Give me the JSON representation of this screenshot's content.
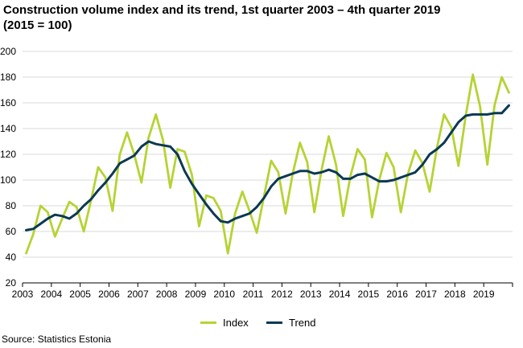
{
  "title_line1": "Construction volume index and its trend, 1st quarter 2003 – 4th quarter 2019",
  "title_line2": "(2015 = 100)",
  "source": "Source: Statistics Estonia",
  "chart_data": {
    "type": "line",
    "title": "Construction volume index and its trend, 1st quarter 2003 – 4th quarter 2019",
    "subtitle": "(2015 = 100)",
    "xlabel": "",
    "ylabel": "",
    "ylim": [
      20,
      200
    ],
    "yticks": [
      20,
      40,
      60,
      80,
      100,
      120,
      140,
      160,
      180,
      200
    ],
    "year_labels": [
      "2003",
      "2004",
      "2005",
      "2006",
      "2007",
      "2008",
      "2009",
      "2010",
      "2011",
      "2012",
      "2013",
      "2014",
      "2015",
      "2016",
      "2017",
      "2018",
      "2019"
    ],
    "grid": "horizontal",
    "legend": "bottom-center",
    "x": [
      "2003 Q1",
      "2003 Q2",
      "2003 Q3",
      "2003 Q4",
      "2004 Q1",
      "2004 Q2",
      "2004 Q3",
      "2004 Q4",
      "2005 Q1",
      "2005 Q2",
      "2005 Q3",
      "2005 Q4",
      "2006 Q1",
      "2006 Q2",
      "2006 Q3",
      "2006 Q4",
      "2007 Q1",
      "2007 Q2",
      "2007 Q3",
      "2007 Q4",
      "2008 Q1",
      "2008 Q2",
      "2008 Q3",
      "2008 Q4",
      "2009 Q1",
      "2009 Q2",
      "2009 Q3",
      "2009 Q4",
      "2010 Q1",
      "2010 Q2",
      "2010 Q3",
      "2010 Q4",
      "2011 Q1",
      "2011 Q2",
      "2011 Q3",
      "2011 Q4",
      "2012 Q1",
      "2012 Q2",
      "2012 Q3",
      "2012 Q4",
      "2013 Q1",
      "2013 Q2",
      "2013 Q3",
      "2013 Q4",
      "2014 Q1",
      "2014 Q2",
      "2014 Q3",
      "2014 Q4",
      "2015 Q1",
      "2015 Q2",
      "2015 Q3",
      "2015 Q4",
      "2016 Q1",
      "2016 Q2",
      "2016 Q3",
      "2016 Q4",
      "2017 Q1",
      "2017 Q2",
      "2017 Q3",
      "2017 Q4",
      "2018 Q1",
      "2018 Q2",
      "2018 Q3",
      "2018 Q4",
      "2019 Q1",
      "2019 Q2",
      "2019 Q3",
      "2019 Q4"
    ],
    "series": [
      {
        "name": "Index",
        "color": "#b5d334",
        "values": [
          43,
          58,
          80,
          75,
          56,
          70,
          83,
          79,
          60,
          84,
          110,
          102,
          76,
          120,
          137,
          120,
          98,
          133,
          151,
          131,
          94,
          124,
          122,
          104,
          64,
          88,
          86,
          76,
          43,
          74,
          91,
          76,
          59,
          87,
          115,
          106,
          74,
          105,
          129,
          114,
          75,
          108,
          134,
          112,
          72,
          103,
          124,
          116,
          71,
          100,
          121,
          110,
          75,
          105,
          123,
          113,
          91,
          125,
          151,
          141,
          111,
          150,
          182,
          157,
          112,
          158,
          180,
          168
        ]
      },
      {
        "name": "Trend",
        "color": "#0b3954",
        "values": [
          61,
          62,
          66,
          70,
          73,
          72,
          70,
          74,
          80,
          85,
          92,
          98,
          105,
          113,
          116,
          119,
          126,
          130,
          128,
          127,
          126,
          120,
          107,
          97,
          89,
          81,
          74,
          68,
          67,
          70,
          72,
          74,
          79,
          86,
          95,
          101,
          103,
          105,
          107,
          107,
          105,
          106,
          108,
          106,
          101,
          101,
          104,
          105,
          102,
          99,
          99,
          100,
          102,
          104,
          106,
          112,
          120,
          124,
          129,
          137,
          145,
          150,
          151,
          151,
          151,
          152,
          152,
          158
        ]
      }
    ]
  }
}
